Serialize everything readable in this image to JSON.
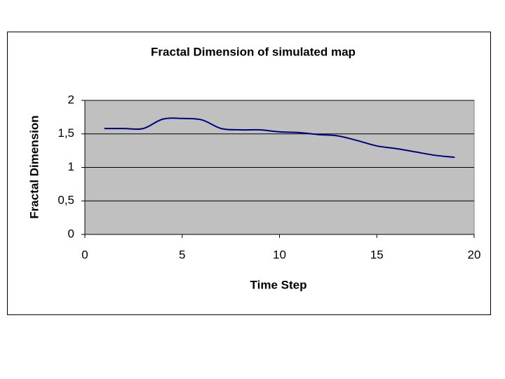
{
  "chart_data": {
    "type": "line",
    "title": "Fractal Dimension of simulated map",
    "x_label": "Time Step",
    "y_label": "Fractal Dimension",
    "x": [
      1,
      2,
      3,
      4,
      5,
      6,
      7,
      8,
      9,
      10,
      11,
      12,
      13,
      14,
      15,
      16,
      17,
      18,
      19
    ],
    "values": [
      1.58,
      1.58,
      1.58,
      1.72,
      1.73,
      1.71,
      1.58,
      1.56,
      1.56,
      1.53,
      1.52,
      1.49,
      1.47,
      1.4,
      1.32,
      1.28,
      1.23,
      1.18,
      1.15
    ],
    "color": "#000080",
    "xlim": [
      0,
      20
    ],
    "xticks": [
      0,
      5,
      10,
      15,
      20
    ],
    "ylim": [
      0,
      2
    ],
    "yticks": [
      0,
      {
        "value": 0.5,
        "label": "0,5"
      },
      1,
      {
        "value": 1.5,
        "label": "1,5"
      },
      2
    ],
    "grid": true
  }
}
